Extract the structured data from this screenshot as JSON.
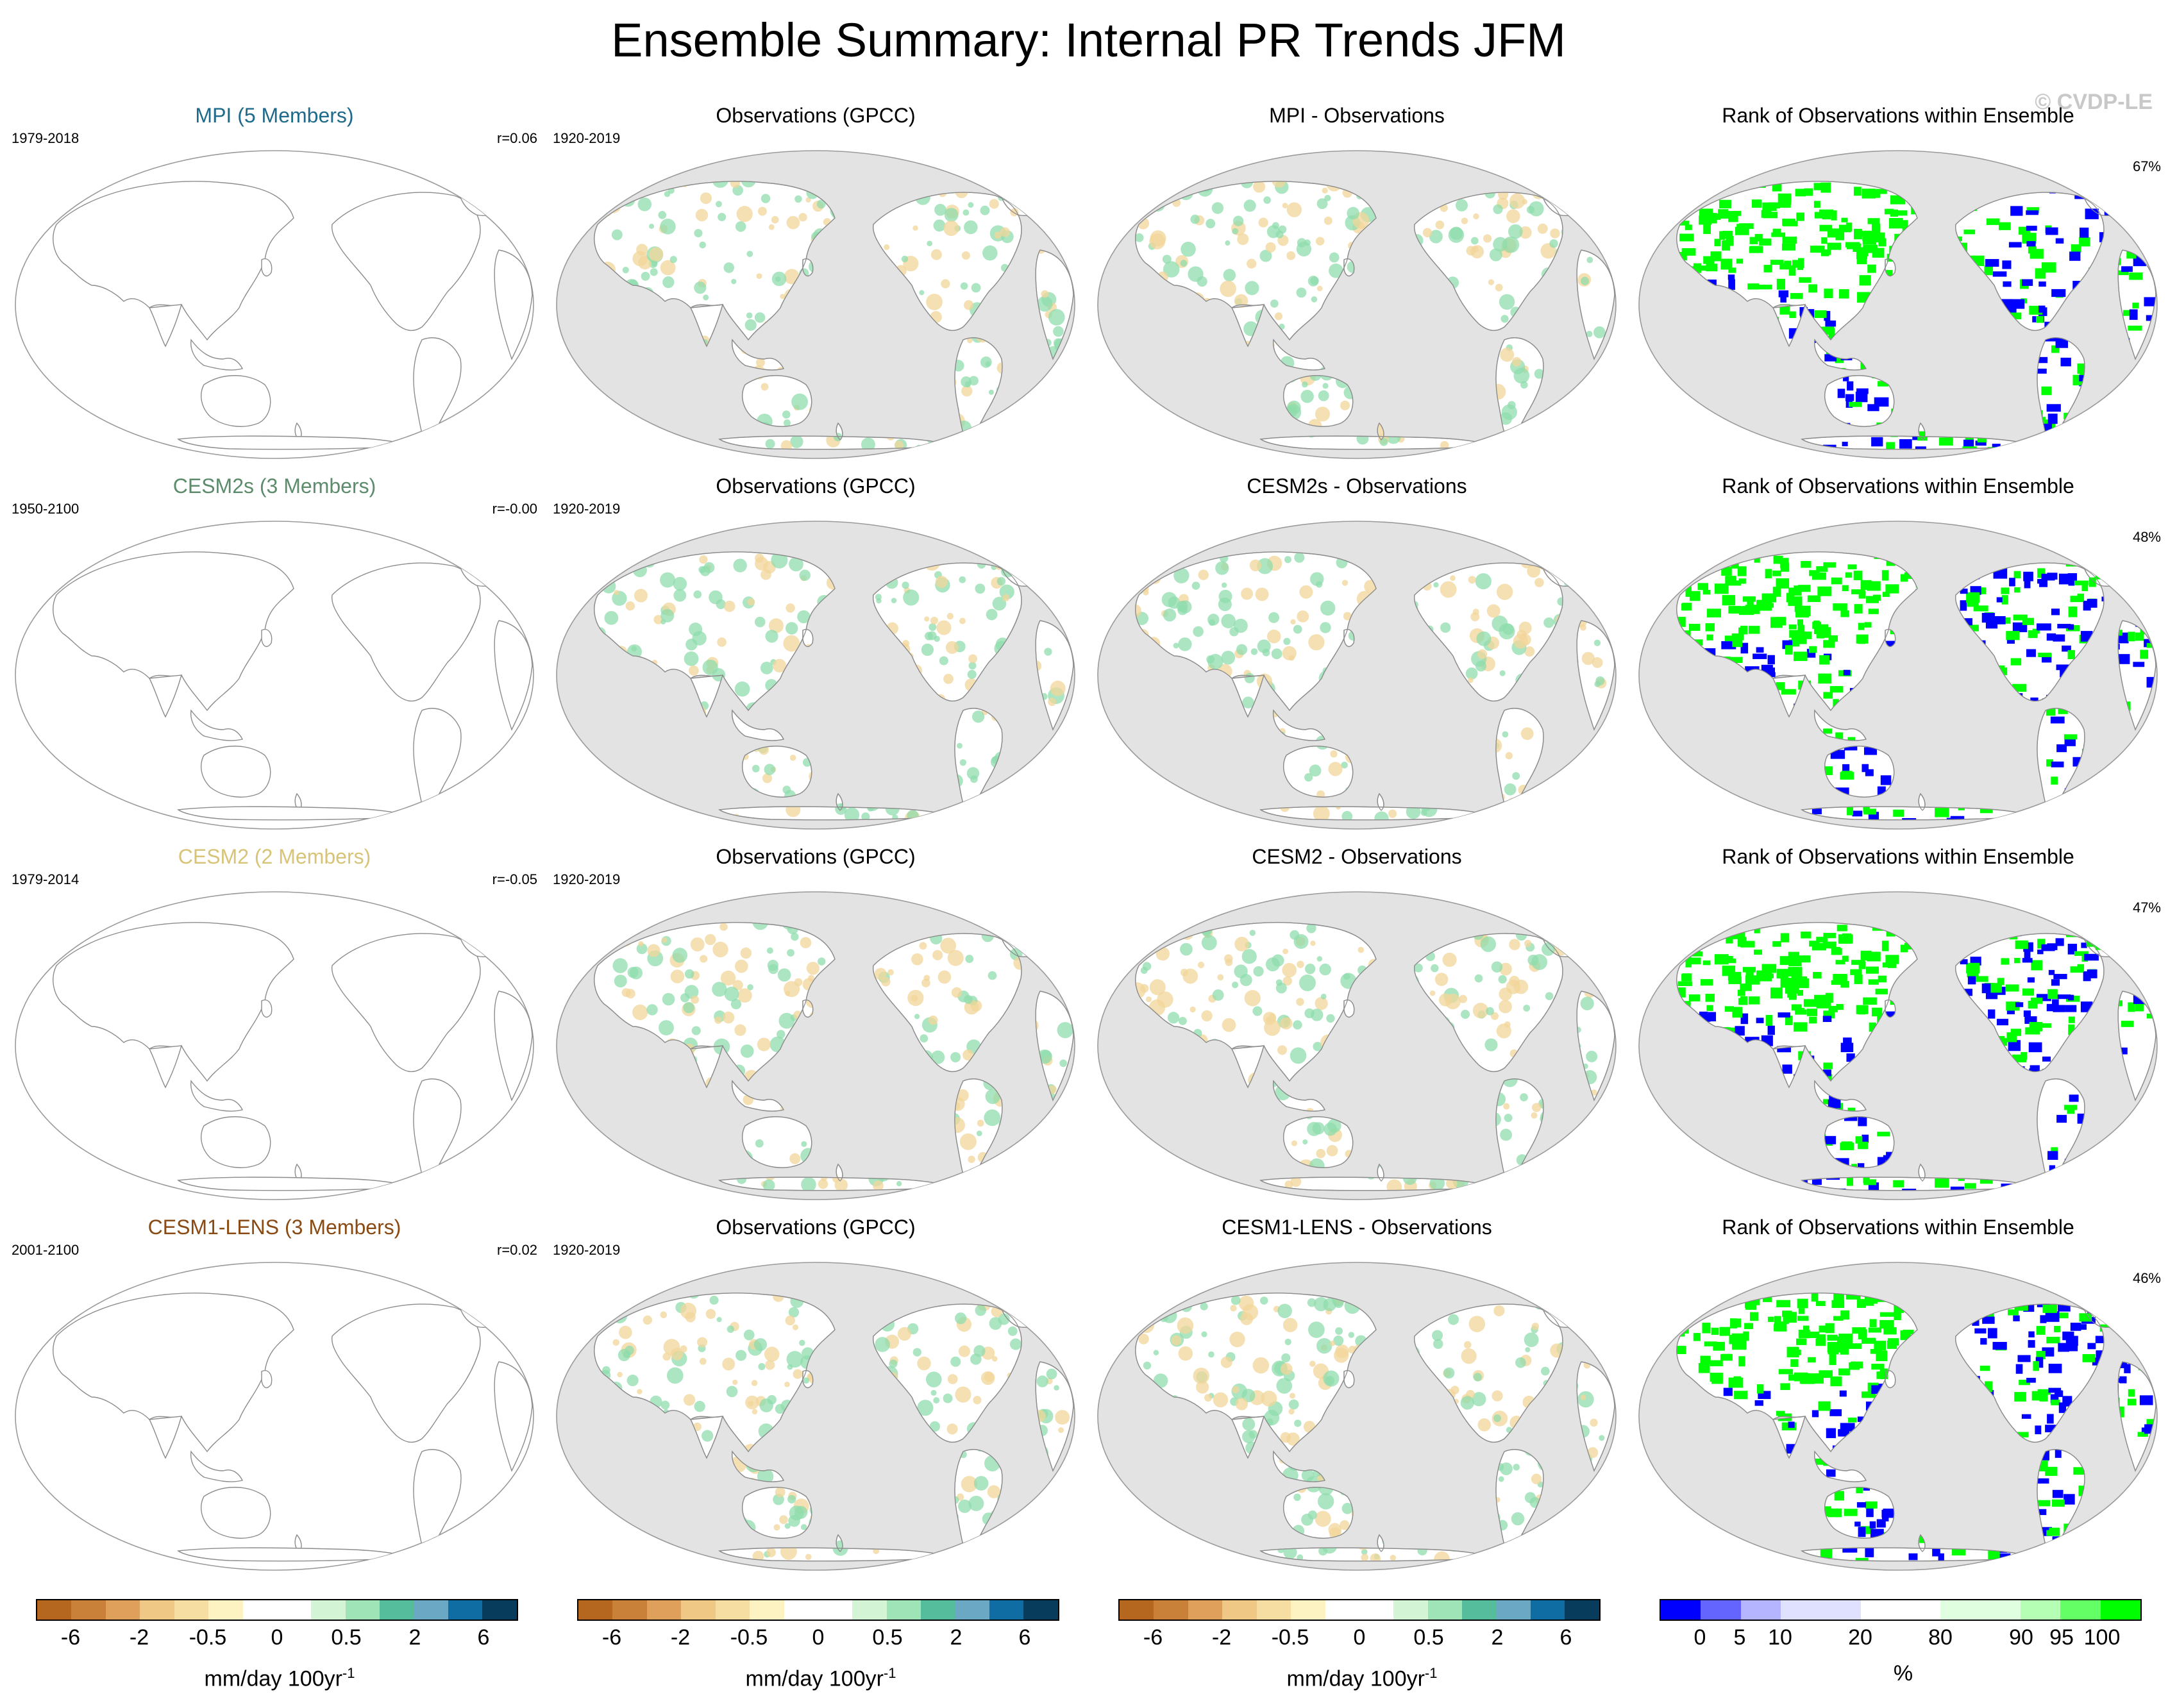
{
  "title": "Ensemble Summary: Internal PR Trends JFM",
  "watermark": "© CVDP-LE",
  "rows": [
    {
      "model_title": "MPI (5 Members)",
      "model_color": "#1f6a8a",
      "model_years": "1979-2018",
      "r": "r=0.06",
      "obs_title": "Observations (GPCC)",
      "obs_years": "1920-2019",
      "diff_title": "MPI - Observations",
      "rank_title": "Rank of Observations within Ensemble",
      "rank_pct": "67%"
    },
    {
      "model_title": "CESM2s (3 Members)",
      "model_color": "#5c8c6c",
      "model_years": "1950-2100",
      "r": "r=-0.00",
      "obs_title": "Observations (GPCC)",
      "obs_years": "1920-2019",
      "diff_title": "CESM2s - Observations",
      "rank_title": "Rank of Observations within Ensemble",
      "rank_pct": "48%"
    },
    {
      "model_title": "CESM2 (2 Members)",
      "model_color": "#d8c478",
      "model_years": "1979-2014",
      "r": "r=-0.05",
      "obs_title": "Observations (GPCC)",
      "obs_years": "1920-2019",
      "diff_title": "CESM2 - Observations",
      "rank_title": "Rank of Observations within Ensemble",
      "rank_pct": "47%"
    },
    {
      "model_title": "CESM1-LENS (3 Members)",
      "model_color": "#8a4a14",
      "model_years": "2001-2100",
      "r": "r=0.02",
      "obs_title": "Observations (GPCC)",
      "obs_years": "1920-2019",
      "diff_title": "CESM1-LENS - Observations",
      "rank_title": "Rank of Observations within Ensemble",
      "rank_pct": "46%"
    }
  ],
  "trend_colorbar": {
    "colors": [
      "#b5671f",
      "#c98139",
      "#dea05a",
      "#efc886",
      "#f6dea3",
      "#fdf3c2",
      "#ffffff",
      "#ffffff",
      "#d3f5d6",
      "#9fe4b6",
      "#56bd9c",
      "#6aa8c4",
      "#0f6da3",
      "#073c5c"
    ],
    "ticks": [
      "-6",
      "-2",
      "-0.5",
      "0",
      "0.5",
      "2",
      "6"
    ],
    "unit": "mm/day 100yr",
    "unit_exp": "-1"
  },
  "rank_colorbar": {
    "colors": [
      "#0000ff",
      "#6464ff",
      "#b4b4ff",
      "#e0e0ff",
      "#e0e0ff",
      "#ffffff",
      "#ffffff",
      "#e0ffe0",
      "#e0ffe0",
      "#b4ffb4",
      "#64ff64",
      "#00ff00"
    ],
    "ticks": [
      "0",
      "5",
      "10",
      "20",
      "80",
      "90",
      "95",
      "100"
    ],
    "unit": "%"
  },
  "map_colors": {
    "ocean_obs": "#e3e3e3",
    "land": "#ffffff",
    "coast": "#8c8c8c",
    "wet": "#8fdcac",
    "dry": "#f2d69a",
    "rank_high": "#00ff00",
    "rank_low": "#0000ff"
  }
}
